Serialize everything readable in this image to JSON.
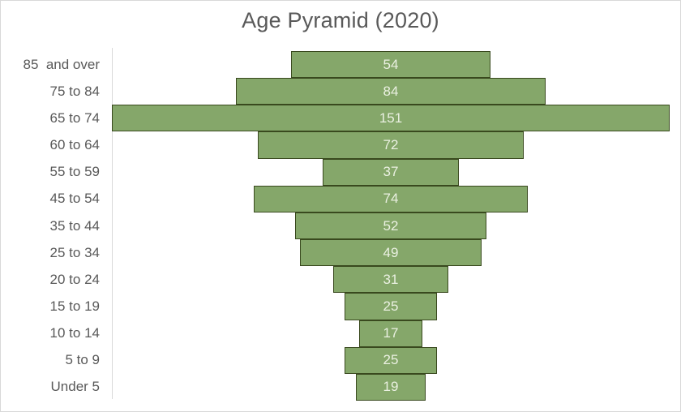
{
  "chart": {
    "colors": {
      "bar_fill": "#85A76A",
      "bar_border": "#39491E",
      "value_text": "#EAF0E1",
      "label_text": "#595959",
      "axis_line": "#D9D9D9",
      "chart_border": "#D9D9D9"
    }
  },
  "chart_data": {
    "type": "bar",
    "variant": "funnel-centered",
    "title": "Age Pyramid (2020)",
    "categories": [
      "85  and over",
      "75 to 84",
      "65 to 74",
      "60 to 64",
      "55 to 59",
      "45 to 54",
      "35 to 44",
      "25 to 34",
      "20 to 24",
      "15 to 19",
      "10 to 14",
      "5 to 9",
      "Under 5"
    ],
    "values": [
      54,
      84,
      151,
      72,
      37,
      74,
      52,
      49,
      31,
      25,
      17,
      25,
      19
    ],
    "xlabel": "",
    "ylabel": "",
    "xlim": [
      0,
      151
    ],
    "grid": false,
    "legend": "none",
    "value_labels": "inside-center",
    "orientation": "horizontal-centered"
  }
}
